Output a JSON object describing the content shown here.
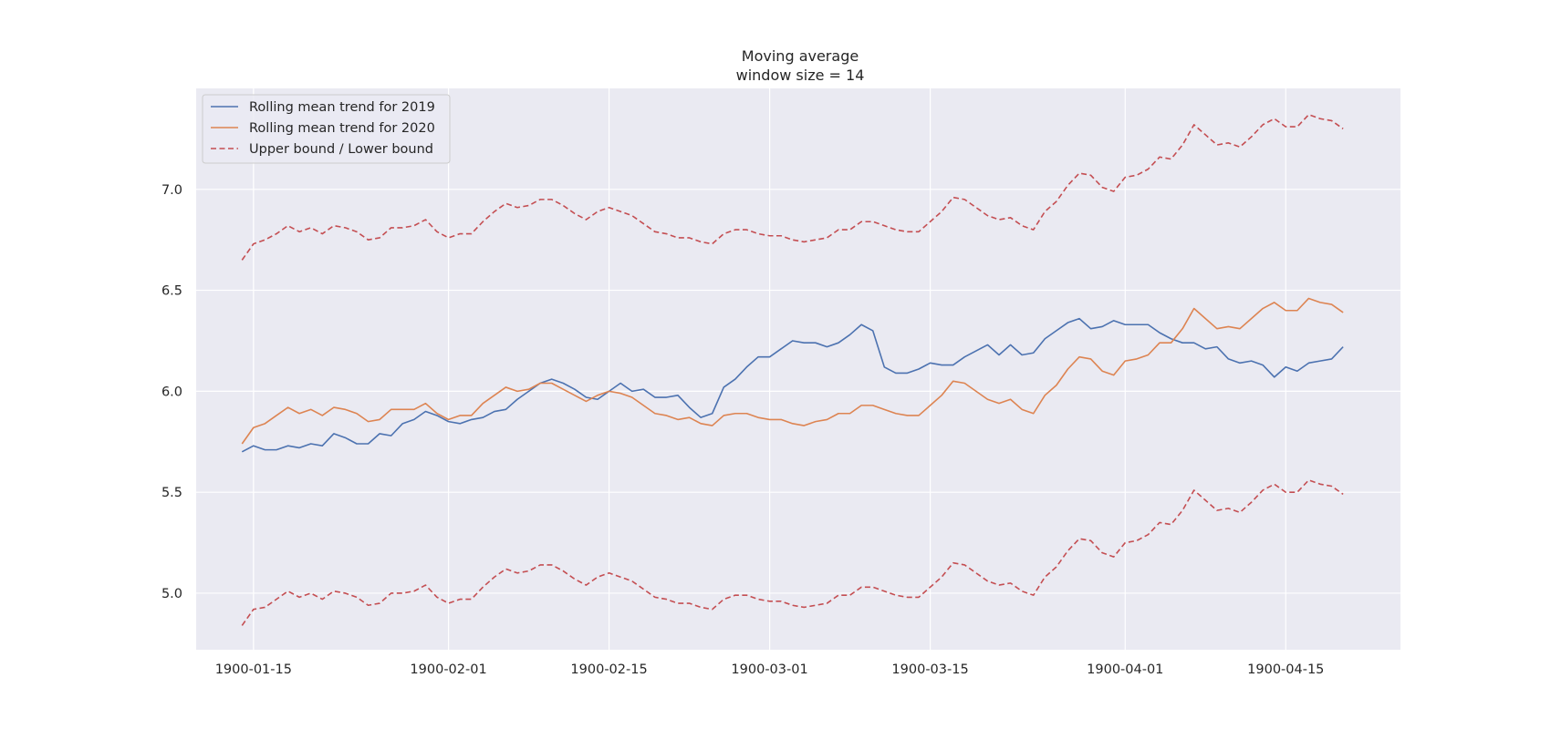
{
  "chart_data": {
    "type": "line",
    "title_line1": "Moving average",
    "title_line2": "window size = 14",
    "xlabel": "",
    "ylabel": "",
    "x_start": "1900-01-14",
    "x_end": "1900-04-20",
    "xlim": [
      "1900-01-10",
      "1900-04-25"
    ],
    "ylim": [
      4.72,
      7.5
    ],
    "x_ticks": [
      "1900-01-15",
      "1900-02-01",
      "1900-02-15",
      "1900-03-01",
      "1900-03-15",
      "1900-04-01",
      "1900-04-15"
    ],
    "y_ticks": [
      5.0,
      5.5,
      6.0,
      6.5,
      7.0
    ],
    "y_tick_labels": [
      "5.0",
      "5.5",
      "6.0",
      "6.5",
      "7.0"
    ],
    "grid": true,
    "legend_position": "top-left",
    "background_color": "#eaeaf2",
    "series": [
      {
        "name": "Rolling mean trend for 2019",
        "color": "#4c72b0",
        "style": "solid",
        "values": [
          5.7,
          5.73,
          5.71,
          5.71,
          5.73,
          5.72,
          5.74,
          5.73,
          5.79,
          5.77,
          5.74,
          5.74,
          5.79,
          5.78,
          5.84,
          5.86,
          5.9,
          5.88,
          5.85,
          5.84,
          5.86,
          5.87,
          5.9,
          5.91,
          5.96,
          6.0,
          6.04,
          6.06,
          6.04,
          6.01,
          5.97,
          5.96,
          6.0,
          6.04,
          6.0,
          6.01,
          5.97,
          5.97,
          5.98,
          5.92,
          5.87,
          5.89,
          6.02,
          6.06,
          6.12,
          6.17,
          6.17,
          6.21,
          6.25,
          6.24,
          6.24,
          6.22,
          6.24,
          6.28,
          6.33,
          6.3,
          6.12,
          6.09,
          6.09,
          6.11,
          6.14,
          6.13,
          6.13,
          6.17,
          6.2,
          6.23,
          6.18,
          6.23,
          6.18,
          6.19,
          6.26,
          6.3,
          6.34,
          6.36,
          6.31,
          6.32,
          6.35,
          6.33,
          6.33,
          6.33,
          6.29,
          6.26,
          6.24,
          6.24,
          6.21,
          6.22,
          6.16,
          6.14,
          6.15,
          6.13,
          6.07,
          6.12,
          6.1,
          6.14,
          6.15,
          6.16,
          6.22
        ]
      },
      {
        "name": "Rolling mean trend for 2020",
        "color": "#dd8452",
        "style": "solid",
        "values": [
          5.74,
          5.82,
          5.84,
          5.88,
          5.92,
          5.89,
          5.91,
          5.88,
          5.92,
          5.91,
          5.89,
          5.85,
          5.86,
          5.91,
          5.91,
          5.91,
          5.94,
          5.89,
          5.86,
          5.88,
          5.88,
          5.94,
          5.98,
          6.02,
          6.0,
          6.01,
          6.04,
          6.04,
          6.01,
          5.98,
          5.95,
          5.98,
          6.0,
          5.99,
          5.97,
          5.93,
          5.89,
          5.88,
          5.86,
          5.87,
          5.84,
          5.83,
          5.88,
          5.89,
          5.89,
          5.87,
          5.86,
          5.86,
          5.84,
          5.83,
          5.85,
          5.86,
          5.89,
          5.89,
          5.93,
          5.93,
          5.91,
          5.89,
          5.88,
          5.88,
          5.93,
          5.98,
          6.05,
          6.04,
          6.0,
          5.96,
          5.94,
          5.96,
          5.91,
          5.89,
          5.98,
          6.03,
          6.11,
          6.17,
          6.16,
          6.1,
          6.08,
          6.15,
          6.16,
          6.18,
          6.24,
          6.24,
          6.31,
          6.41,
          6.36,
          6.31,
          6.32,
          6.31,
          6.36,
          6.41,
          6.44,
          6.4,
          6.4,
          6.46,
          6.44,
          6.43,
          6.39
        ]
      },
      {
        "name": "Upper bound / Lower bound",
        "color": "#c44e52",
        "style": "dashed",
        "values": [
          6.65,
          6.73,
          6.75,
          6.78,
          6.82,
          6.79,
          6.81,
          6.78,
          6.82,
          6.81,
          6.79,
          6.75,
          6.76,
          6.81,
          6.81,
          6.82,
          6.85,
          6.79,
          6.76,
          6.78,
          6.78,
          6.84,
          6.89,
          6.93,
          6.91,
          6.92,
          6.95,
          6.95,
          6.92,
          6.88,
          6.85,
          6.89,
          6.91,
          6.89,
          6.87,
          6.83,
          6.79,
          6.78,
          6.76,
          6.76,
          6.74,
          6.73,
          6.78,
          6.8,
          6.8,
          6.78,
          6.77,
          6.77,
          6.75,
          6.74,
          6.75,
          6.76,
          6.8,
          6.8,
          6.84,
          6.84,
          6.82,
          6.8,
          6.79,
          6.79,
          6.84,
          6.89,
          6.96,
          6.95,
          6.91,
          6.87,
          6.85,
          6.86,
          6.82,
          6.8,
          6.89,
          6.94,
          7.02,
          7.08,
          7.07,
          7.01,
          6.99,
          7.06,
          7.07,
          7.1,
          7.16,
          7.15,
          7.22,
          7.32,
          7.27,
          7.22,
          7.23,
          7.21,
          7.26,
          7.32,
          7.35,
          7.31,
          7.31,
          7.37,
          7.35,
          7.34,
          7.3
        ]
      },
      {
        "name": "",
        "color": "#c44e52",
        "style": "dashed",
        "values": [
          4.84,
          4.92,
          4.93,
          4.97,
          5.01,
          4.98,
          5.0,
          4.97,
          5.01,
          5.0,
          4.98,
          4.94,
          4.95,
          5.0,
          5.0,
          5.01,
          5.04,
          4.98,
          4.95,
          4.97,
          4.97,
          5.03,
          5.08,
          5.12,
          5.1,
          5.11,
          5.14,
          5.14,
          5.11,
          5.07,
          5.04,
          5.08,
          5.1,
          5.08,
          5.06,
          5.02,
          4.98,
          4.97,
          4.95,
          4.95,
          4.93,
          4.92,
          4.97,
          4.99,
          4.99,
          4.97,
          4.96,
          4.96,
          4.94,
          4.93,
          4.94,
          4.95,
          4.99,
          4.99,
          5.03,
          5.03,
          5.01,
          4.99,
          4.98,
          4.98,
          5.03,
          5.08,
          5.15,
          5.14,
          5.1,
          5.06,
          5.04,
          5.05,
          5.01,
          4.99,
          5.08,
          5.13,
          5.21,
          5.27,
          5.26,
          5.2,
          5.18,
          5.25,
          5.26,
          5.29,
          5.35,
          5.34,
          5.41,
          5.51,
          5.46,
          5.41,
          5.42,
          5.4,
          5.45,
          5.51,
          5.54,
          5.5,
          5.5,
          5.56,
          5.54,
          5.53,
          5.49
        ]
      }
    ]
  }
}
